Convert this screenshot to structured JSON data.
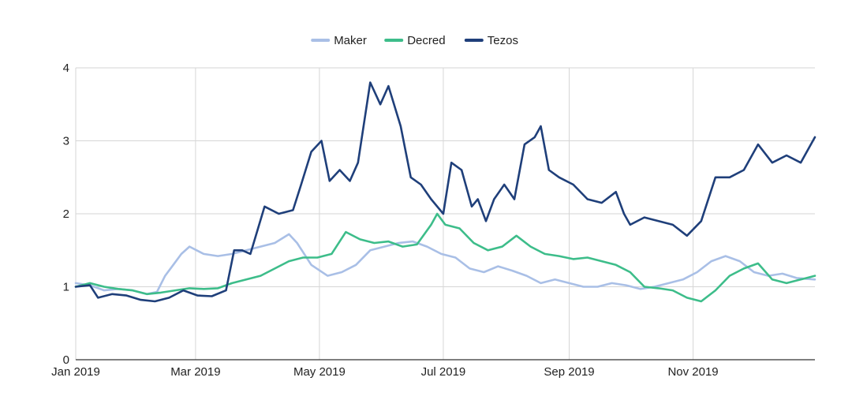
{
  "chart_data": {
    "type": "line",
    "title": "",
    "xlabel": "",
    "ylabel": "",
    "ylim": [
      0,
      4
    ],
    "yticks": [
      "0",
      "1",
      "2",
      "3",
      "4"
    ],
    "xlim": [
      "2019-01-01",
      "2019-12-31"
    ],
    "xticks": [
      {
        "label": "Jan 2019",
        "date": "2019-01-01"
      },
      {
        "label": "Mar 2019",
        "date": "2019-03-01"
      },
      {
        "label": "May 2019",
        "date": "2019-05-01"
      },
      {
        "label": "Jul 2019",
        "date": "2019-07-01"
      },
      {
        "label": "Sep 2019",
        "date": "2019-09-01"
      },
      {
        "label": "Nov 2019",
        "date": "2019-11-01"
      }
    ],
    "grid": true,
    "legend_position": "top-center",
    "series": [
      {
        "name": "Maker",
        "color": "#a9bfe6",
        "points": [
          [
            "2019-01-01",
            1.05
          ],
          [
            "2019-01-08",
            1.02
          ],
          [
            "2019-01-15",
            0.95
          ],
          [
            "2019-01-22",
            0.97
          ],
          [
            "2019-01-29",
            0.95
          ],
          [
            "2019-02-05",
            0.9
          ],
          [
            "2019-02-10",
            0.93
          ],
          [
            "2019-02-14",
            1.15
          ],
          [
            "2019-02-18",
            1.3
          ],
          [
            "2019-02-22",
            1.45
          ],
          [
            "2019-02-26",
            1.55
          ],
          [
            "2019-03-05",
            1.45
          ],
          [
            "2019-03-12",
            1.42
          ],
          [
            "2019-03-19",
            1.45
          ],
          [
            "2019-03-26",
            1.5
          ],
          [
            "2019-04-02",
            1.55
          ],
          [
            "2019-04-09",
            1.6
          ],
          [
            "2019-04-16",
            1.72
          ],
          [
            "2019-04-20",
            1.6
          ],
          [
            "2019-04-27",
            1.3
          ],
          [
            "2019-05-05",
            1.15
          ],
          [
            "2019-05-12",
            1.2
          ],
          [
            "2019-05-19",
            1.3
          ],
          [
            "2019-05-26",
            1.5
          ],
          [
            "2019-06-02",
            1.55
          ],
          [
            "2019-06-09",
            1.6
          ],
          [
            "2019-06-16",
            1.62
          ],
          [
            "2019-06-23",
            1.55
          ],
          [
            "2019-06-30",
            1.45
          ],
          [
            "2019-07-07",
            1.4
          ],
          [
            "2019-07-14",
            1.25
          ],
          [
            "2019-07-21",
            1.2
          ],
          [
            "2019-07-28",
            1.28
          ],
          [
            "2019-08-04",
            1.22
          ],
          [
            "2019-08-11",
            1.15
          ],
          [
            "2019-08-18",
            1.05
          ],
          [
            "2019-08-25",
            1.1
          ],
          [
            "2019-09-01",
            1.05
          ],
          [
            "2019-09-08",
            1.0
          ],
          [
            "2019-09-15",
            1.0
          ],
          [
            "2019-09-22",
            1.05
          ],
          [
            "2019-09-29",
            1.02
          ],
          [
            "2019-10-06",
            0.97
          ],
          [
            "2019-10-13",
            1.0
          ],
          [
            "2019-10-20",
            1.05
          ],
          [
            "2019-10-27",
            1.1
          ],
          [
            "2019-11-03",
            1.2
          ],
          [
            "2019-11-10",
            1.35
          ],
          [
            "2019-11-17",
            1.42
          ],
          [
            "2019-11-24",
            1.35
          ],
          [
            "2019-12-01",
            1.2
          ],
          [
            "2019-12-08",
            1.15
          ],
          [
            "2019-12-15",
            1.18
          ],
          [
            "2019-12-22",
            1.12
          ],
          [
            "2019-12-31",
            1.1
          ]
        ]
      },
      {
        "name": "Decred",
        "color": "#3dbd8a",
        "points": [
          [
            "2019-01-01",
            1.0
          ],
          [
            "2019-01-08",
            1.05
          ],
          [
            "2019-01-15",
            1.0
          ],
          [
            "2019-01-22",
            0.97
          ],
          [
            "2019-01-29",
            0.95
          ],
          [
            "2019-02-05",
            0.9
          ],
          [
            "2019-02-12",
            0.92
          ],
          [
            "2019-02-19",
            0.95
          ],
          [
            "2019-02-26",
            0.98
          ],
          [
            "2019-03-05",
            0.97
          ],
          [
            "2019-03-12",
            0.98
          ],
          [
            "2019-03-19",
            1.05
          ],
          [
            "2019-03-26",
            1.1
          ],
          [
            "2019-04-02",
            1.15
          ],
          [
            "2019-04-09",
            1.25
          ],
          [
            "2019-04-16",
            1.35
          ],
          [
            "2019-04-23",
            1.4
          ],
          [
            "2019-04-30",
            1.4
          ],
          [
            "2019-05-07",
            1.45
          ],
          [
            "2019-05-14",
            1.75
          ],
          [
            "2019-05-21",
            1.65
          ],
          [
            "2019-05-28",
            1.6
          ],
          [
            "2019-06-04",
            1.62
          ],
          [
            "2019-06-11",
            1.55
          ],
          [
            "2019-06-18",
            1.58
          ],
          [
            "2019-06-25",
            1.85
          ],
          [
            "2019-06-28",
            2.0
          ],
          [
            "2019-07-02",
            1.85
          ],
          [
            "2019-07-09",
            1.8
          ],
          [
            "2019-07-16",
            1.6
          ],
          [
            "2019-07-23",
            1.5
          ],
          [
            "2019-07-30",
            1.55
          ],
          [
            "2019-08-06",
            1.7
          ],
          [
            "2019-08-13",
            1.55
          ],
          [
            "2019-08-20",
            1.45
          ],
          [
            "2019-08-27",
            1.42
          ],
          [
            "2019-09-03",
            1.38
          ],
          [
            "2019-09-10",
            1.4
          ],
          [
            "2019-09-17",
            1.35
          ],
          [
            "2019-09-24",
            1.3
          ],
          [
            "2019-10-01",
            1.2
          ],
          [
            "2019-10-08",
            1.0
          ],
          [
            "2019-10-15",
            0.98
          ],
          [
            "2019-10-22",
            0.95
          ],
          [
            "2019-10-29",
            0.85
          ],
          [
            "2019-11-05",
            0.8
          ],
          [
            "2019-11-12",
            0.95
          ],
          [
            "2019-11-19",
            1.15
          ],
          [
            "2019-11-26",
            1.25
          ],
          [
            "2019-12-03",
            1.32
          ],
          [
            "2019-12-10",
            1.1
          ],
          [
            "2019-12-17",
            1.05
          ],
          [
            "2019-12-24",
            1.1
          ],
          [
            "2019-12-31",
            1.15
          ]
        ]
      },
      {
        "name": "Tezos",
        "color": "#1f3f7a",
        "points": [
          [
            "2019-01-01",
            1.0
          ],
          [
            "2019-01-08",
            1.02
          ],
          [
            "2019-01-12",
            0.85
          ],
          [
            "2019-01-19",
            0.9
          ],
          [
            "2019-01-26",
            0.88
          ],
          [
            "2019-02-02",
            0.82
          ],
          [
            "2019-02-09",
            0.8
          ],
          [
            "2019-02-16",
            0.85
          ],
          [
            "2019-02-23",
            0.95
          ],
          [
            "2019-03-02",
            0.88
          ],
          [
            "2019-03-09",
            0.87
          ],
          [
            "2019-03-16",
            0.95
          ],
          [
            "2019-03-20",
            1.5
          ],
          [
            "2019-03-24",
            1.5
          ],
          [
            "2019-03-28",
            1.45
          ],
          [
            "2019-04-04",
            2.1
          ],
          [
            "2019-04-11",
            2.0
          ],
          [
            "2019-04-18",
            2.05
          ],
          [
            "2019-04-22",
            2.4
          ],
          [
            "2019-04-27",
            2.85
          ],
          [
            "2019-05-02",
            3.0
          ],
          [
            "2019-05-06",
            2.45
          ],
          [
            "2019-05-11",
            2.6
          ],
          [
            "2019-05-16",
            2.45
          ],
          [
            "2019-05-20",
            2.7
          ],
          [
            "2019-05-26",
            3.8
          ],
          [
            "2019-05-31",
            3.5
          ],
          [
            "2019-06-04",
            3.75
          ],
          [
            "2019-06-10",
            3.2
          ],
          [
            "2019-06-15",
            2.5
          ],
          [
            "2019-06-20",
            2.4
          ],
          [
            "2019-06-25",
            2.2
          ],
          [
            "2019-07-01",
            2.0
          ],
          [
            "2019-07-05",
            2.7
          ],
          [
            "2019-07-10",
            2.6
          ],
          [
            "2019-07-15",
            2.1
          ],
          [
            "2019-07-18",
            2.2
          ],
          [
            "2019-07-22",
            1.9
          ],
          [
            "2019-07-26",
            2.2
          ],
          [
            "2019-07-31",
            2.4
          ],
          [
            "2019-08-05",
            2.2
          ],
          [
            "2019-08-10",
            2.95
          ],
          [
            "2019-08-15",
            3.05
          ],
          [
            "2019-08-18",
            3.2
          ],
          [
            "2019-08-22",
            2.6
          ],
          [
            "2019-08-27",
            2.5
          ],
          [
            "2019-09-03",
            2.4
          ],
          [
            "2019-09-10",
            2.2
          ],
          [
            "2019-09-17",
            2.15
          ],
          [
            "2019-09-24",
            2.3
          ],
          [
            "2019-09-28",
            2.0
          ],
          [
            "2019-10-01",
            1.85
          ],
          [
            "2019-10-08",
            1.95
          ],
          [
            "2019-10-15",
            1.9
          ],
          [
            "2019-10-22",
            1.85
          ],
          [
            "2019-10-29",
            1.7
          ],
          [
            "2019-11-05",
            1.9
          ],
          [
            "2019-11-12",
            2.5
          ],
          [
            "2019-11-19",
            2.5
          ],
          [
            "2019-11-26",
            2.6
          ],
          [
            "2019-12-03",
            2.95
          ],
          [
            "2019-12-10",
            2.7
          ],
          [
            "2019-12-17",
            2.8
          ],
          [
            "2019-12-24",
            2.7
          ],
          [
            "2019-12-31",
            3.05
          ]
        ]
      }
    ]
  }
}
